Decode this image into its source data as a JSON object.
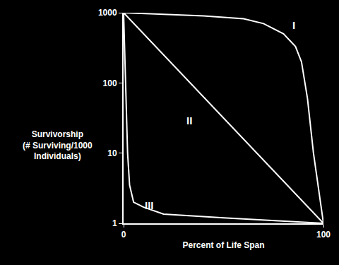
{
  "chart_data": {
    "type": "line",
    "xlabel": "Percent of Life Span",
    "ylabel": [
      "Survivorship",
      "(# Surviving/1000",
      "Individuals)"
    ],
    "log": "y",
    "grid": false,
    "xlim": [
      0,
      100
    ],
    "xticks": [
      0,
      100
    ],
    "ylim": [
      1,
      1000
    ],
    "yticks": [
      1,
      10,
      100,
      1000
    ],
    "color": "#ffffff",
    "series": [
      {
        "color": "#ffffff",
        "x": [
          0,
          20,
          40,
          60,
          70,
          80,
          86,
          89,
          92,
          95,
          100
        ],
        "values": [
          1000,
          950,
          900,
          820,
          700,
          500,
          330,
          200,
          60,
          10,
          1
        ]
      },
      {
        "color": "#ffffff",
        "x": [
          0,
          100
        ],
        "values": [
          1000,
          1
        ]
      },
      {
        "color": "#ffffff",
        "x": [
          0,
          1,
          2,
          3,
          5,
          10,
          20,
          50,
          100
        ],
        "values": [
          1000,
          100,
          10,
          3.5,
          2,
          1.7,
          1.35,
          1.2,
          1
        ]
      }
    ],
    "annotations": [
      {
        "text": "I",
        "x": 85,
        "y": 670
      },
      {
        "text": "II",
        "x": 33,
        "y": 29
      },
      {
        "text": "III",
        "x": 13,
        "y": 1.8
      }
    ]
  }
}
